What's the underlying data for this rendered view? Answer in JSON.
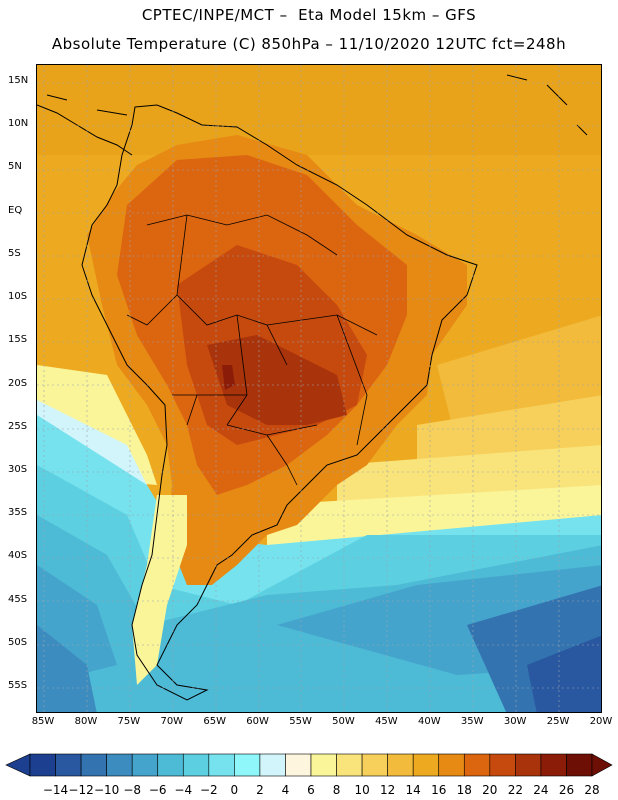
{
  "header": {
    "title_line1": "CPTEC/INPE/MCT –  Eta Model 15km – GFS",
    "title_line2": "Absolute Temperature (C) 850hPa – 11/10/2020 12UTC fct=248h"
  },
  "map": {
    "region": "South America",
    "lat_labels": [
      "15N",
      "10N",
      "5N",
      "EQ",
      "5S",
      "10S",
      "15S",
      "20S",
      "25S",
      "30S",
      "35S",
      "40S",
      "45S",
      "50S",
      "55S"
    ],
    "lon_labels": [
      "85W",
      "80W",
      "75W",
      "70W",
      "65W",
      "60W",
      "55W",
      "50W",
      "45W",
      "40W",
      "35W",
      "30W",
      "25W",
      "20W"
    ],
    "lat_values": [
      15,
      10,
      5,
      0,
      -5,
      -10,
      -15,
      -20,
      -25,
      -30,
      -35,
      -40,
      -45,
      -50,
      -55
    ],
    "lon_values": [
      -85,
      -80,
      -75,
      -70,
      -65,
      -60,
      -55,
      -50,
      -45,
      -40,
      -35,
      -30,
      -25,
      -20
    ]
  },
  "colorbar": {
    "units": "C",
    "labels": [
      "-14",
      "-12",
      "-10",
      "-8",
      "-6",
      "-4",
      "-2",
      "0",
      "2",
      "4",
      "6",
      "8",
      "10",
      "12",
      "14",
      "16",
      "18",
      "20",
      "22",
      "24",
      "26",
      "28"
    ],
    "colors": [
      "#1d3f8f",
      "#2957a0",
      "#3373b0",
      "#3c8cbf",
      "#45a4cc",
      "#4dbad6",
      "#5ccfe0",
      "#75e2ee",
      "#8ff7fa",
      "#d2f5fb",
      "#fdf5dd",
      "#fbf59a",
      "#f9e47c",
      "#f6d05a",
      "#f2bb3c",
      "#edaa21",
      "#e68a14",
      "#dc6510",
      "#c64a0e",
      "#a9330b",
      "#8a1c08",
      "#6e0f05"
    ]
  }
}
